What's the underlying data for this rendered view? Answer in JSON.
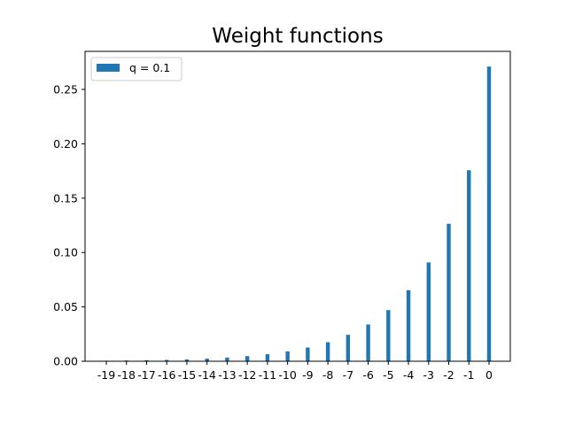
{
  "chart_data": {
    "type": "bar",
    "title": "Weight functions",
    "xlabel": "",
    "ylabel": "",
    "categories": [
      "-19",
      "-18",
      "-17",
      "-16",
      "-15",
      "-14",
      "-13",
      "-12",
      "-11",
      "-10",
      "-9",
      "-8",
      "-7",
      "-6",
      "-5",
      "-4",
      "-3",
      "-2",
      "-1",
      "0"
    ],
    "series": [
      {
        "name": "q = 0.1",
        "color": "#1f77b4",
        "values": [
          0.0005,
          0.0007,
          0.0009,
          0.0012,
          0.0017,
          0.0024,
          0.0034,
          0.0047,
          0.0065,
          0.0091,
          0.0126,
          0.0175,
          0.0243,
          0.0338,
          0.047,
          0.0654,
          0.0909,
          0.1264,
          0.1757,
          0.271
        ]
      }
    ],
    "ylim": [
      0,
      0.285
    ],
    "yticks": [
      "0.00",
      "0.05",
      "0.10",
      "0.15",
      "0.20",
      "0.25"
    ],
    "grid": false,
    "legend_position": "top-left"
  }
}
